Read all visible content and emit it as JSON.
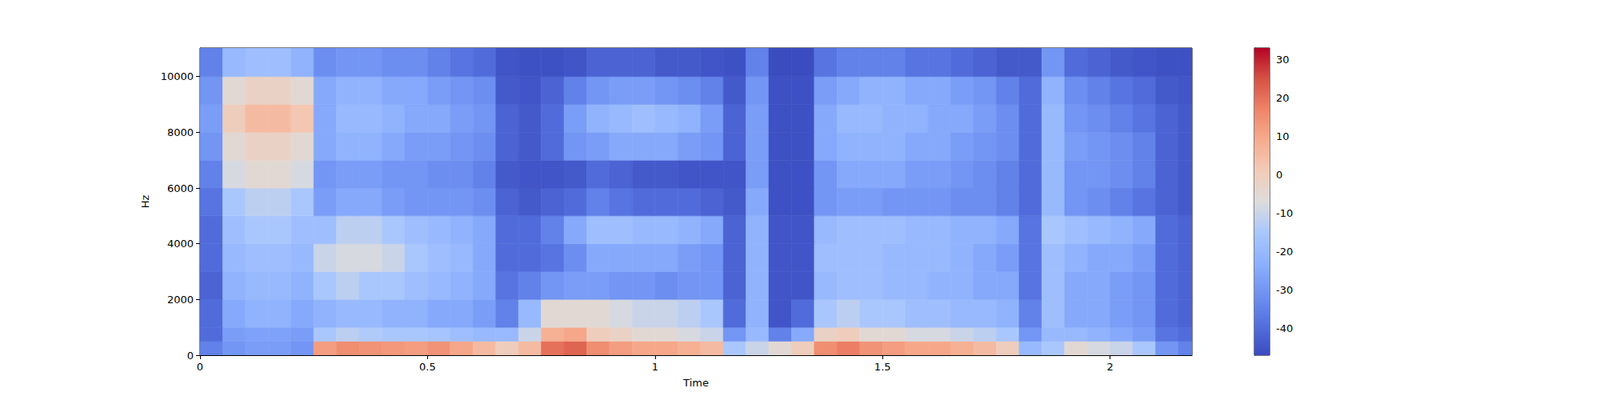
{
  "chart_data": {
    "type": "heatmap",
    "xlabel": "Time",
    "ylabel": "Hz",
    "x_edges": [
      0,
      0.05,
      0.1,
      0.15,
      0.2,
      0.25,
      0.3,
      0.35,
      0.4,
      0.45,
      0.5,
      0.55,
      0.6,
      0.65,
      0.7,
      0.75,
      0.8,
      0.85,
      0.9,
      0.95,
      1,
      1.05,
      1.1,
      1.15,
      1.2,
      1.25,
      1.3,
      1.35,
      1.4,
      1.45,
      1.5,
      1.55,
      1.6,
      1.65,
      1.7,
      1.75,
      1.8,
      1.85,
      1.9,
      1.95,
      2,
      2.05,
      2.1,
      2.15,
      2.18
    ],
    "y_edges": [
      0,
      500,
      1000,
      2000,
      3000,
      4000,
      5000,
      6000,
      7000,
      8000,
      9000,
      10000,
      11025
    ],
    "values": [
      [
        -35,
        -30,
        -28,
        -28,
        -30,
        12,
        15,
        14,
        13,
        12,
        14,
        10,
        5,
        0,
        5,
        20,
        22,
        15,
        12,
        10,
        10,
        8,
        5,
        -15,
        -10,
        -5,
        0,
        15,
        18,
        14,
        12,
        10,
        10,
        8,
        5,
        0,
        -20,
        -15,
        -5,
        -8,
        -10,
        -15,
        -30,
        -35
      ],
      [
        -40,
        -28,
        -27,
        -27,
        -28,
        -15,
        -12,
        -14,
        -15,
        -15,
        -16,
        -18,
        -20,
        -20,
        -10,
        8,
        10,
        0,
        -2,
        -5,
        -5,
        -8,
        -10,
        -30,
        -20,
        -35,
        -25,
        -2,
        0,
        -5,
        -5,
        -8,
        -8,
        -10,
        -12,
        -15,
        -30,
        -20,
        -20,
        -22,
        -25,
        -28,
        -38,
        -40
      ],
      [
        -40,
        -25,
        -22,
        -22,
        -25,
        -22,
        -20,
        -20,
        -22,
        -22,
        -25,
        -25,
        -28,
        -35,
        -20,
        -5,
        -5,
        -5,
        -8,
        -10,
        -10,
        -12,
        -15,
        -40,
        -22,
        -45,
        -40,
        -15,
        -12,
        -15,
        -15,
        -18,
        -18,
        -20,
        -20,
        -22,
        -35,
        -18,
        -25,
        -25,
        -28,
        -30,
        -40,
        -42
      ],
      [
        -42,
        -22,
        -20,
        -20,
        -22,
        -15,
        -12,
        -15,
        -15,
        -18,
        -20,
        -22,
        -25,
        -38,
        -35,
        -30,
        -28,
        -28,
        -30,
        -30,
        -32,
        -30,
        -30,
        -42,
        -22,
        -45,
        -45,
        -20,
        -18,
        -18,
        -20,
        -20,
        -22,
        -22,
        -25,
        -25,
        -38,
        -18,
        -25,
        -25,
        -28,
        -30,
        -40,
        -42
      ],
      [
        -40,
        -20,
        -18,
        -18,
        -20,
        -10,
        -8,
        -8,
        -10,
        -15,
        -18,
        -20,
        -25,
        -40,
        -40,
        -38,
        -32,
        -25,
        -25,
        -25,
        -25,
        -28,
        -30,
        -42,
        -22,
        -45,
        -45,
        -18,
        -18,
        -18,
        -20,
        -20,
        -20,
        -22,
        -25,
        -28,
        -38,
        -18,
        -22,
        -25,
        -25,
        -28,
        -40,
        -42
      ],
      [
        -40,
        -18,
        -15,
        -15,
        -18,
        -18,
        -12,
        -12,
        -15,
        -18,
        -20,
        -22,
        -25,
        -40,
        -40,
        -35,
        -25,
        -18,
        -18,
        -20,
        -20,
        -22,
        -25,
        -42,
        -22,
        -45,
        -45,
        -20,
        -18,
        -18,
        -18,
        -20,
        -20,
        -22,
        -22,
        -25,
        -38,
        -15,
        -18,
        -20,
        -22,
        -25,
        -40,
        -42
      ],
      [
        -38,
        -15,
        -12,
        -12,
        -15,
        -28,
        -25,
        -25,
        -28,
        -30,
        -30,
        -30,
        -32,
        -42,
        -44,
        -42,
        -40,
        -35,
        -38,
        -40,
        -40,
        -40,
        -42,
        -44,
        -25,
        -46,
        -46,
        -30,
        -28,
        -28,
        -30,
        -30,
        -30,
        -32,
        -32,
        -35,
        -40,
        -20,
        -30,
        -32,
        -35,
        -38,
        -42,
        -44
      ],
      [
        -35,
        -8,
        -5,
        -5,
        -8,
        -30,
        -28,
        -28,
        -30,
        -30,
        -32,
        -32,
        -35,
        -44,
        -45,
        -45,
        -44,
        -40,
        -42,
        -44,
        -44,
        -45,
        -45,
        -45,
        -28,
        -46,
        -46,
        -30,
        -25,
        -25,
        -25,
        -28,
        -28,
        -30,
        -32,
        -35,
        -40,
        -20,
        -30,
        -30,
        -32,
        -35,
        -42,
        -44
      ],
      [
        -30,
        -5,
        -2,
        -2,
        -5,
        -25,
        -22,
        -22,
        -25,
        -28,
        -28,
        -30,
        -32,
        -42,
        -44,
        -40,
        -30,
        -28,
        -25,
        -25,
        -25,
        -28,
        -30,
        -42,
        -28,
        -46,
        -46,
        -25,
        -22,
        -22,
        -22,
        -25,
        -25,
        -28,
        -30,
        -32,
        -40,
        -20,
        -28,
        -30,
        -32,
        -35,
        -42,
        -44
      ],
      [
        -28,
        0,
        5,
        5,
        2,
        -25,
        -20,
        -20,
        -22,
        -25,
        -25,
        -28,
        -30,
        -42,
        -44,
        -40,
        -28,
        -22,
        -20,
        -18,
        -20,
        -22,
        -28,
        -42,
        -28,
        -46,
        -46,
        -25,
        -20,
        -20,
        -22,
        -22,
        -25,
        -25,
        -28,
        -32,
        -40,
        -20,
        -30,
        -32,
        -35,
        -38,
        -42,
        -44
      ],
      [
        -30,
        -5,
        -2,
        -2,
        -5,
        -25,
        -22,
        -22,
        -25,
        -25,
        -28,
        -30,
        -32,
        -44,
        -45,
        -42,
        -35,
        -30,
        -28,
        -28,
        -30,
        -32,
        -35,
        -44,
        -30,
        -46,
        -46,
        -28,
        -25,
        -22,
        -22,
        -25,
        -25,
        -28,
        -30,
        -35,
        -40,
        -22,
        -32,
        -35,
        -38,
        -40,
        -44,
        -45
      ],
      [
        -35,
        -20,
        -18,
        -18,
        -22,
        -32,
        -30,
        -30,
        -32,
        -32,
        -35,
        -38,
        -40,
        -45,
        -46,
        -46,
        -45,
        -42,
        -42,
        -42,
        -44,
        -44,
        -45,
        -46,
        -35,
        -47,
        -47,
        -38,
        -35,
        -35,
        -35,
        -38,
        -38,
        -40,
        -42,
        -44,
        -44,
        -30,
        -40,
        -42,
        -44,
        -45,
        -46,
        -46
      ]
    ],
    "xlim": [
      0,
      2.18
    ],
    "xticks": [
      0,
      0.5,
      1,
      1.5,
      2
    ],
    "ylim": [
      0,
      11025
    ],
    "yticks": [
      0,
      2000,
      4000,
      6000,
      8000,
      10000
    ],
    "colorbar": {
      "range": [
        -47,
        33
      ],
      "ticks": [
        -40,
        -30,
        -20,
        -10,
        0,
        10,
        20,
        30
      ]
    }
  }
}
